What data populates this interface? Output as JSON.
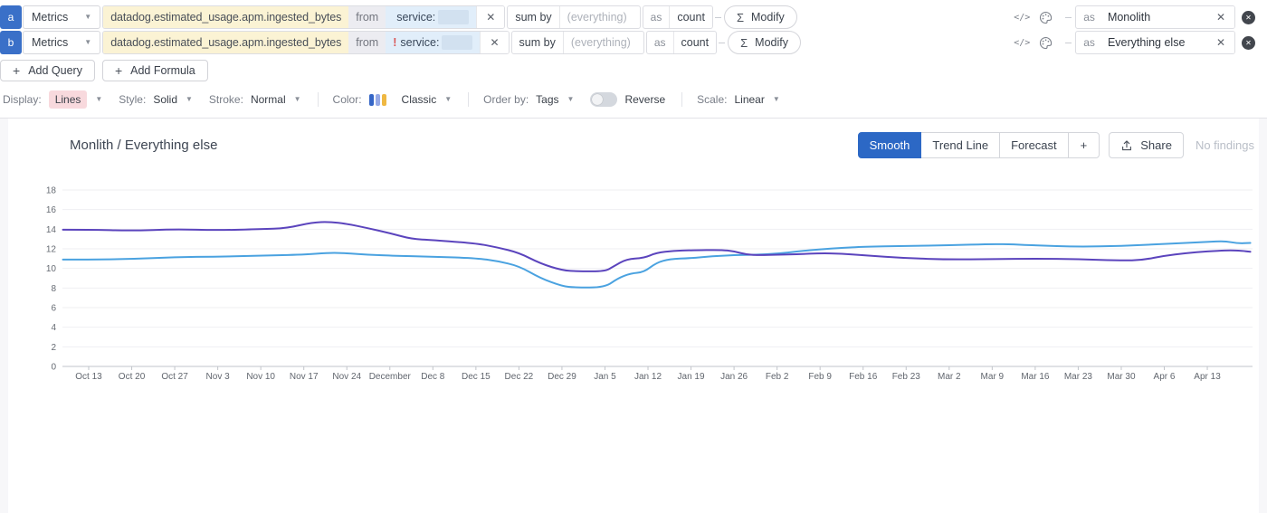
{
  "queries": {
    "rows": [
      {
        "letter": "a",
        "source": "Metrics",
        "metric": "datadog.estimated_usage.apm.ingested_bytes",
        "from_label": "from",
        "filter_negated": "",
        "filter": "service:",
        "sum_by_label": "sum by",
        "group_placeholder": "(everything)",
        "as_label": "as",
        "aggregator": "count",
        "modify_label": "Modify",
        "alias_as_label": "as",
        "alias": "Monolith"
      },
      {
        "letter": "b",
        "source": "Metrics",
        "metric": "datadog.estimated_usage.apm.ingested_bytes",
        "from_label": "from",
        "filter_negated": "!",
        "filter": "service:",
        "sum_by_label": "sum by",
        "group_placeholder": "(everything)",
        "as_label": "as",
        "aggregator": "count",
        "modify_label": "Modify",
        "alias_as_label": "as",
        "alias": "Everything else"
      }
    ],
    "add_query_label": "Add Query",
    "add_formula_label": "Add Formula"
  },
  "options_bar": {
    "display_label": "Display:",
    "display_value": "Lines",
    "style_label": "Style:",
    "style_value": "Solid",
    "stroke_label": "Stroke:",
    "stroke_value": "Normal",
    "color_label": "Color:",
    "color_value": "Classic",
    "palette_swatch": [
      "#3566c6",
      "#96a9e6",
      "#efb842"
    ],
    "order_by_label": "Order by:",
    "order_by_value": "Tags",
    "reverse_label": "Reverse",
    "reverse_on": false,
    "scale_label": "Scale:",
    "scale_value": "Linear"
  },
  "graph": {
    "title": "Monlith / Everything else",
    "mode_buttons": [
      {
        "label": "Smooth",
        "active": true
      },
      {
        "label": "Trend Line",
        "active": false
      },
      {
        "label": "Forecast",
        "active": false
      },
      {
        "label": "+",
        "active": false
      }
    ],
    "share_label": "Share",
    "no_findings_label": "No findings"
  },
  "chart_data": {
    "type": "line",
    "title": "Monlith / Everything else",
    "ylim": [
      0,
      18
    ],
    "y_ticks": [
      0,
      2,
      4,
      6,
      8,
      10,
      12,
      14,
      16,
      18
    ],
    "x_tick_labels": [
      "Oct 13",
      "Oct 20",
      "Oct 27",
      "Nov 3",
      "Nov 10",
      "Nov 17",
      "Nov 24",
      "December",
      "Dec 8",
      "Dec 15",
      "Dec 22",
      "Dec 29",
      "Jan 5",
      "Jan 12",
      "Jan 19",
      "Jan 26",
      "Feb 2",
      "Feb 9",
      "Feb 16",
      "Feb 23",
      "Mar 2",
      "Mar 9",
      "Mar 16",
      "Mar 23",
      "Mar 30",
      "Apr 6",
      "Apr 13"
    ],
    "x_unit": "weeks offset from Oct 13",
    "grid": true,
    "legend": "none",
    "series": [
      {
        "name": "Monolith",
        "color": "#5b44bd",
        "points": [
          [
            -0.6,
            13.95
          ],
          [
            0,
            13.95
          ],
          [
            1,
            13.85
          ],
          [
            2,
            14.0
          ],
          [
            3,
            13.9
          ],
          [
            4,
            14.0
          ],
          [
            4.6,
            14.1
          ],
          [
            5.2,
            14.7
          ],
          [
            5.6,
            14.75
          ],
          [
            6,
            14.55
          ],
          [
            6.5,
            14.1
          ],
          [
            7,
            13.6
          ],
          [
            7.5,
            13.0
          ],
          [
            8,
            12.9
          ],
          [
            9,
            12.55
          ],
          [
            9.5,
            12.15
          ],
          [
            10,
            11.6
          ],
          [
            10.5,
            10.5
          ],
          [
            11,
            9.8
          ],
          [
            11.4,
            9.7
          ],
          [
            12,
            9.7
          ],
          [
            12.2,
            10.2
          ],
          [
            12.5,
            10.95
          ],
          [
            12.9,
            11.05
          ],
          [
            13.2,
            11.6
          ],
          [
            13.6,
            11.8
          ],
          [
            14,
            11.85
          ],
          [
            14.7,
            11.9
          ],
          [
            15,
            11.75
          ],
          [
            15.3,
            11.4
          ],
          [
            15.6,
            11.35
          ],
          [
            16,
            11.4
          ],
          [
            16.5,
            11.45
          ],
          [
            17,
            11.55
          ],
          [
            17.5,
            11.5
          ],
          [
            18,
            11.35
          ],
          [
            19,
            11.05
          ],
          [
            20,
            10.9
          ],
          [
            21,
            10.95
          ],
          [
            22,
            11.0
          ],
          [
            23,
            10.95
          ],
          [
            24,
            10.8
          ],
          [
            24.5,
            10.85
          ],
          [
            25,
            11.3
          ],
          [
            25.5,
            11.55
          ],
          [
            26,
            11.75
          ],
          [
            26.5,
            11.85
          ],
          [
            26.8,
            11.8
          ],
          [
            27,
            11.7
          ]
        ]
      },
      {
        "name": "Everything else",
        "color": "#4aa2e0",
        "points": [
          [
            -0.6,
            10.9
          ],
          [
            0,
            10.9
          ],
          [
            1,
            10.95
          ],
          [
            2,
            11.15
          ],
          [
            3,
            11.2
          ],
          [
            4,
            11.3
          ],
          [
            5,
            11.4
          ],
          [
            5.6,
            11.6
          ],
          [
            6,
            11.55
          ],
          [
            6.5,
            11.4
          ],
          [
            7,
            11.3
          ],
          [
            8,
            11.2
          ],
          [
            9,
            11.05
          ],
          [
            9.5,
            10.75
          ],
          [
            10,
            10.25
          ],
          [
            10.5,
            9.0
          ],
          [
            11,
            8.2
          ],
          [
            11.3,
            8.05
          ],
          [
            12,
            8.05
          ],
          [
            12.3,
            9.0
          ],
          [
            12.6,
            9.5
          ],
          [
            12.9,
            9.6
          ],
          [
            13.2,
            10.6
          ],
          [
            13.5,
            10.95
          ],
          [
            14,
            11.05
          ],
          [
            14.5,
            11.25
          ],
          [
            15,
            11.35
          ],
          [
            15.5,
            11.4
          ],
          [
            16,
            11.5
          ],
          [
            16.5,
            11.75
          ],
          [
            17,
            11.95
          ],
          [
            17.5,
            12.1
          ],
          [
            18,
            12.2
          ],
          [
            19,
            12.3
          ],
          [
            20,
            12.35
          ],
          [
            21,
            12.5
          ],
          [
            21.5,
            12.45
          ],
          [
            22,
            12.35
          ],
          [
            23,
            12.2
          ],
          [
            24,
            12.3
          ],
          [
            25,
            12.5
          ],
          [
            26,
            12.7
          ],
          [
            26.4,
            12.8
          ],
          [
            26.7,
            12.55
          ],
          [
            27,
            12.6
          ]
        ]
      }
    ]
  }
}
